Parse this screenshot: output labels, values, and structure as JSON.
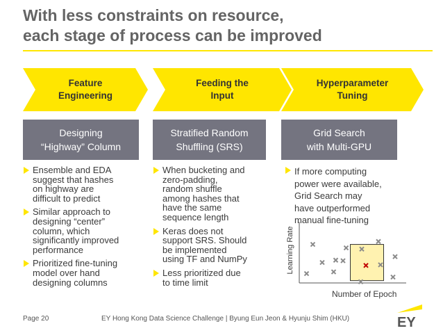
{
  "slide": {
    "title_line1": "With less constraints on resource,",
    "title_line2": "each stage of process can be improved"
  },
  "stages": [
    {
      "line1": "Feature",
      "line2": "Engineering"
    },
    {
      "line1": "Feeding the",
      "line2": "Input"
    },
    {
      "line1": "Hyperparameter",
      "line2": "Tuning"
    }
  ],
  "techniques": [
    {
      "line1": "Designing",
      "line2": "“Highway” Column"
    },
    {
      "line1": "Stratified Random",
      "line2": "Shuffling (SRS)"
    },
    {
      "line1": "Grid Search",
      "line2": "with Multi-GPU"
    }
  ],
  "bullets": [
    [
      [
        "Ensemble and EDA",
        "suggest that hashes",
        "on highway are",
        "difficult to predict"
      ],
      [
        "Similar approach to",
        "designing “center”",
        "column, which",
        "significantly improved",
        "performance"
      ],
      [
        "Prioritized fine-tuning",
        "model over hand",
        "designing columns"
      ]
    ],
    [
      [
        "When bucketing and",
        "zero-padding,",
        "random shuffle",
        "among hashes that",
        "have the same",
        "sequence length"
      ],
      [
        "Keras does not",
        "support SRS. Should",
        "be implemented",
        "using TF and NumPy"
      ],
      [
        "Less prioritized due",
        "to time limit"
      ]
    ],
    [
      [
        "If more computing",
        "power were available,",
        "Grid Search may",
        "have outperformed",
        "manual fine-tuning"
      ]
    ]
  ],
  "chart_data": {
    "type": "scatter",
    "xlabel": "Number of Epoch",
    "ylabel": "Learning Rate",
    "marker": "x",
    "xlim": [
      0,
      10
    ],
    "ylim": [
      0,
      10
    ],
    "grid": false,
    "highlight_region": {
      "x": [
        4.9,
        8.1
      ],
      "y": [
        0.4,
        6.6
      ]
    },
    "series": [
      {
        "color": "#8a8a8a",
        "points": [
          [
            1.3,
            6.6
          ],
          [
            2.2,
            3.5
          ],
          [
            3.5,
            3.9
          ],
          [
            4.5,
            6.0
          ],
          [
            4.2,
            3.8
          ],
          [
            6.0,
            5.8
          ],
          [
            7.6,
            7.1
          ],
          [
            9.2,
            4.5
          ],
          [
            7.8,
            3.1
          ],
          [
            0.7,
            1.6
          ],
          [
            3.3,
            1.9
          ],
          [
            5.9,
            0.2
          ],
          [
            9.0,
            1.0
          ]
        ]
      },
      {
        "color": "#c00000",
        "points": [
          [
            6.4,
            3.0
          ]
        ]
      }
    ]
  },
  "footer": {
    "page": "Page 20",
    "text": "EY Hong Kong Data Science Challenge | Byung Eun Jeon & Hyunju Shim (HKU)"
  },
  "colors": {
    "accent": "#ffe600",
    "box": "#747480",
    "title": "#646464"
  }
}
